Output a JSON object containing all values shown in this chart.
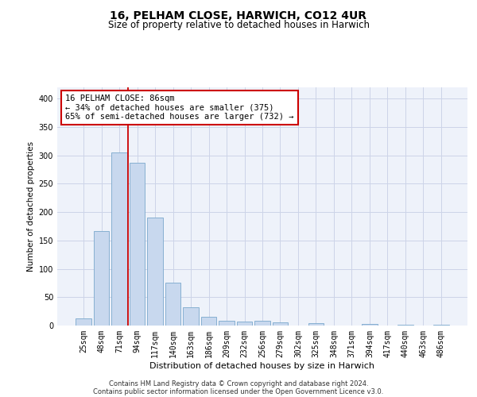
{
  "title": "16, PELHAM CLOSE, HARWICH, CO12 4UR",
  "subtitle": "Size of property relative to detached houses in Harwich",
  "xlabel": "Distribution of detached houses by size in Harwich",
  "ylabel": "Number of detached properties",
  "categories": [
    "25sqm",
    "48sqm",
    "71sqm",
    "94sqm",
    "117sqm",
    "140sqm",
    "163sqm",
    "186sqm",
    "209sqm",
    "232sqm",
    "256sqm",
    "279sqm",
    "302sqm",
    "325sqm",
    "348sqm",
    "371sqm",
    "394sqm",
    "417sqm",
    "440sqm",
    "463sqm",
    "486sqm"
  ],
  "values": [
    13,
    166,
    305,
    287,
    191,
    76,
    32,
    16,
    9,
    7,
    8,
    5,
    0,
    4,
    0,
    0,
    3,
    0,
    2,
    0,
    2
  ],
  "bar_color": "#c8d8ee",
  "bar_edge_color": "#7aa8cc",
  "vline_x": 2.5,
  "vline_color": "#cc0000",
  "annotation_line1": "16 PELHAM CLOSE: 86sqm",
  "annotation_line2": "← 34% of detached houses are smaller (375)",
  "annotation_line3": "65% of semi-detached houses are larger (732) →",
  "annotation_box_color": "#ffffff",
  "annotation_box_edge": "#cc0000",
  "ylim": [
    0,
    420
  ],
  "yticks": [
    0,
    50,
    100,
    150,
    200,
    250,
    300,
    350,
    400
  ],
  "grid_color": "#ccd4e8",
  "background_color": "#eef2fa",
  "footer_line1": "Contains HM Land Registry data © Crown copyright and database right 2024.",
  "footer_line2": "Contains public sector information licensed under the Open Government Licence v3.0.",
  "title_fontsize": 10,
  "subtitle_fontsize": 8.5,
  "xlabel_fontsize": 8,
  "ylabel_fontsize": 7.5,
  "tick_fontsize": 7,
  "annotation_fontsize": 7.5,
  "footer_fontsize": 6
}
